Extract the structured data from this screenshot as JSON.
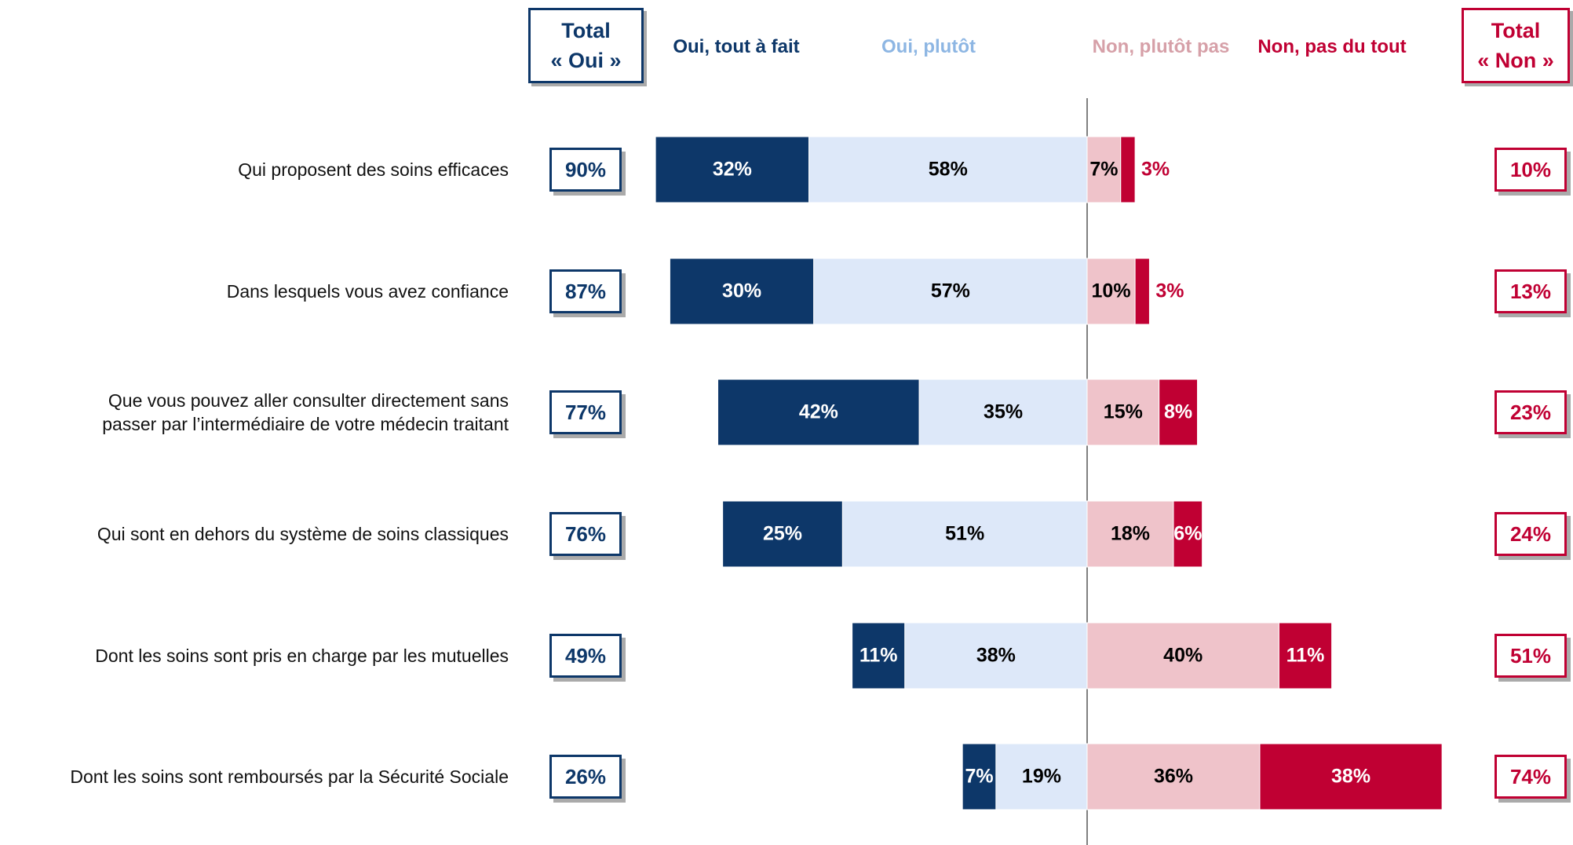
{
  "chart_data": {
    "type": "diverging_bar",
    "categories": [
      "Qui proposent des soins efficaces",
      "Dans lesquels vous avez confiance",
      "Que vous pouvez aller consulter directement sans\npasser par l’intermédiaire de votre médecin traitant",
      "Qui sont en dehors du système de soins classiques",
      "Dont les soins sont pris en charge par les mutuelles",
      "Dont les soins sont remboursés par la Sécurité Sociale"
    ],
    "series": [
      {
        "name": "Oui, tout à fait",
        "color": "#0d3769",
        "values": [
          32,
          30,
          42,
          25,
          11,
          7
        ],
        "value_labels": [
          "32%",
          "30%",
          "42%",
          "25%",
          "11%",
          "7%"
        ]
      },
      {
        "name": "Oui, plutôt",
        "color": "#dde8f9",
        "values": [
          58,
          57,
          35,
          51,
          38,
          19
        ],
        "value_labels": [
          "58%",
          "57%",
          "35%",
          "51%",
          "38%",
          "19%"
        ]
      },
      {
        "name": "Non, plutôt pas",
        "color": "#efc3ca",
        "values": [
          7,
          10,
          15,
          18,
          40,
          36
        ],
        "value_labels": [
          "7%",
          "10%",
          "15%",
          "18%",
          "40%",
          "36%"
        ]
      },
      {
        "name": "Non, pas du tout",
        "color": "#c00033",
        "values": [
          3,
          3,
          8,
          6,
          11,
          38
        ],
        "value_labels": [
          "3%",
          "3%",
          "8%",
          "6%",
          "11%",
          "38%"
        ]
      }
    ],
    "total_oui": {
      "title": "Total\n« Oui »",
      "color": "#0d3769",
      "values": [
        90,
        87,
        77,
        76,
        49,
        26
      ],
      "value_labels": [
        "90%",
        "87%",
        "77%",
        "76%",
        "49%",
        "26%"
      ]
    },
    "total_non": {
      "title": "Total\n« Non »",
      "color": "#c00033",
      "values": [
        10,
        13,
        23,
        24,
        51,
        74
      ],
      "value_labels": [
        "10%",
        "13%",
        "23%",
        "24%",
        "51%",
        "74%"
      ]
    }
  }
}
